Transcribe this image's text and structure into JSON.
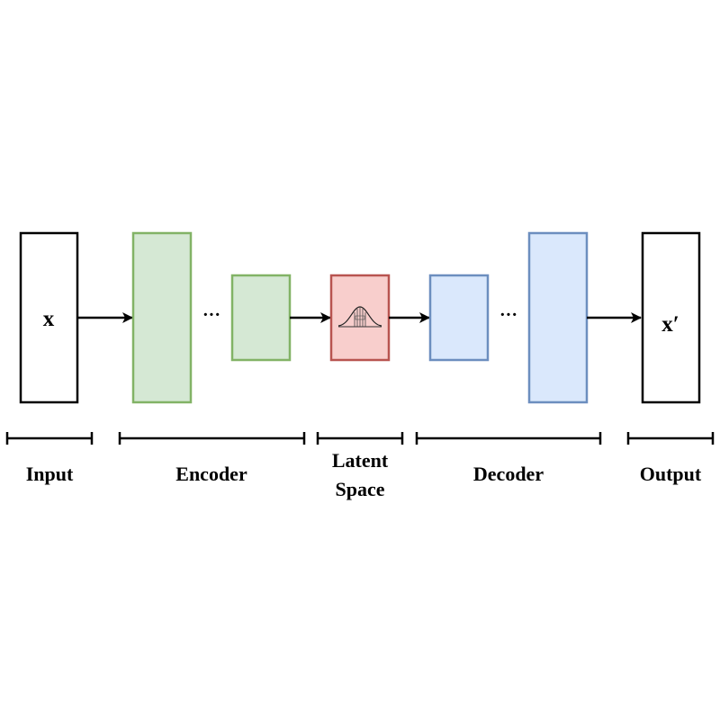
{
  "diagram": {
    "input_symbol": "x",
    "output_symbol": "x′",
    "ellipsis": "···",
    "sections": {
      "input": "Input",
      "encoder": "Encoder",
      "latent_line1": "Latent",
      "latent_line2": "Space",
      "decoder": "Decoder",
      "output": "Output"
    }
  },
  "colors": {
    "encoder_fill": "#d5e8d4",
    "encoder_stroke": "#82b366",
    "latent_fill": "#f8cecc",
    "latent_stroke": "#b85450",
    "decoder_fill": "#dae8fc",
    "decoder_stroke": "#6c8ebf",
    "io_stroke": "#000000"
  },
  "icons": {
    "latent_distribution": "gaussian-curve-icon"
  }
}
